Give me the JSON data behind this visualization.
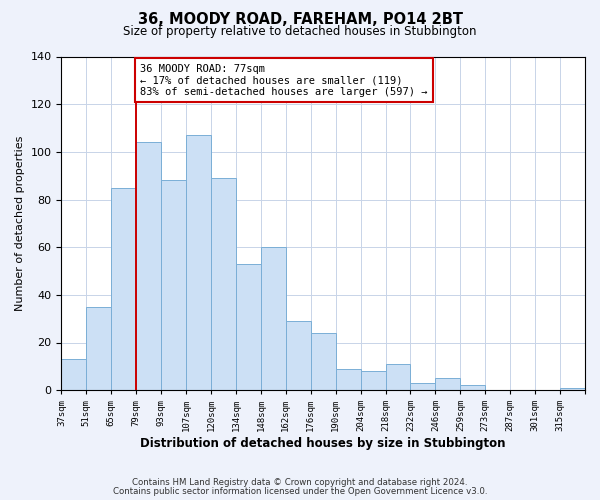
{
  "title": "36, MOODY ROAD, FAREHAM, PO14 2BT",
  "subtitle": "Size of property relative to detached houses in Stubbington",
  "xlabel": "Distribution of detached houses by size in Stubbington",
  "ylabel": "Number of detached properties",
  "bin_labels": [
    "37sqm",
    "51sqm",
    "65sqm",
    "79sqm",
    "93sqm",
    "107sqm",
    "120sqm",
    "134sqm",
    "148sqm",
    "162sqm",
    "176sqm",
    "190sqm",
    "204sqm",
    "218sqm",
    "232sqm",
    "246sqm",
    "259sqm",
    "273sqm",
    "287sqm",
    "301sqm",
    "315sqm"
  ],
  "bar_heights": [
    13,
    35,
    85,
    104,
    88,
    107,
    89,
    53,
    60,
    29,
    24,
    9,
    8,
    11,
    3,
    5,
    2,
    0,
    0,
    0,
    1
  ],
  "bar_color": "#cce0f5",
  "bar_edge_color": "#7aaed6",
  "vline_color": "#cc0000",
  "annotation_title": "36 MOODY ROAD: 77sqm",
  "annotation_line1": "← 17% of detached houses are smaller (119)",
  "annotation_line2": "83% of semi-detached houses are larger (597) →",
  "annotation_box_color": "white",
  "annotation_box_edge_color": "#cc0000",
  "ylim": [
    0,
    140
  ],
  "yticks": [
    0,
    20,
    40,
    60,
    80,
    100,
    120,
    140
  ],
  "footnote1": "Contains HM Land Registry data © Crown copyright and database right 2024.",
  "footnote2": "Contains public sector information licensed under the Open Government Licence v3.0.",
  "bg_color": "#eef2fb",
  "plot_bg_color": "#ffffff",
  "grid_color": "#c8d4e8"
}
